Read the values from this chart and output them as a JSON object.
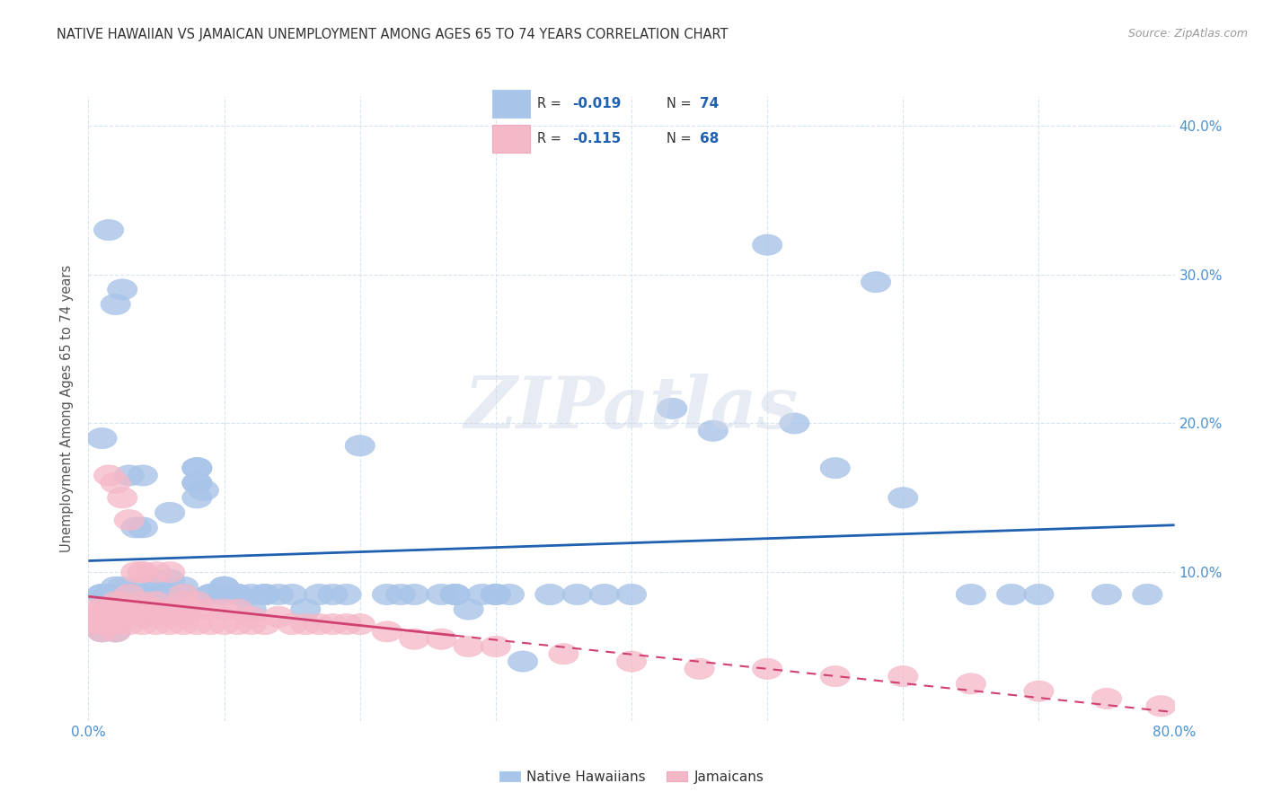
{
  "title": "NATIVE HAWAIIAN VS JAMAICAN UNEMPLOYMENT AMONG AGES 65 TO 74 YEARS CORRELATION CHART",
  "source": "Source: ZipAtlas.com",
  "ylabel": "Unemployment Among Ages 65 to 74 years",
  "xlim": [
    0.0,
    0.8
  ],
  "ylim": [
    0.0,
    0.42
  ],
  "xticks": [
    0.0,
    0.1,
    0.2,
    0.3,
    0.4,
    0.5,
    0.6,
    0.7,
    0.8
  ],
  "xticklabels": [
    "0.0%",
    "",
    "",
    "",
    "",
    "",
    "",
    "",
    "80.0%"
  ],
  "yticks": [
    0.0,
    0.1,
    0.2,
    0.3,
    0.4
  ],
  "yticklabels_right": [
    "",
    "10.0%",
    "20.0%",
    "30.0%",
    "40.0%"
  ],
  "blue_color": "#a8c4e8",
  "pink_color": "#f5b8c8",
  "blue_line_color": "#2060b0",
  "pink_line_color": "#d04070",
  "axis_tick_color": "#4a90d0",
  "grid_color": "#d8e4f0",
  "watermark_text": "ZIPatlas",
  "native_hawaiian_x": [
    0.01,
    0.01,
    0.01,
    0.015,
    0.02,
    0.02,
    0.02,
    0.02,
    0.025,
    0.025,
    0.03,
    0.03,
    0.03,
    0.03,
    0.04,
    0.04,
    0.04,
    0.04,
    0.05,
    0.05,
    0.05,
    0.06,
    0.06,
    0.07,
    0.07,
    0.08,
    0.08,
    0.08,
    0.09,
    0.09,
    0.1,
    0.1,
    0.1,
    0.11,
    0.11,
    0.12,
    0.12,
    0.13,
    0.13,
    0.14,
    0.15,
    0.16,
    0.17,
    0.18,
    0.19,
    0.2,
    0.22,
    0.23,
    0.24,
    0.26,
    0.27,
    0.27,
    0.28,
    0.29,
    0.3,
    0.3,
    0.31,
    0.32,
    0.34,
    0.36,
    0.38,
    0.4,
    0.43,
    0.46,
    0.5,
    0.52,
    0.55,
    0.58,
    0.6,
    0.65,
    0.68,
    0.7,
    0.75,
    0.78
  ],
  "native_hawaiian_y": [
    0.085,
    0.085,
    0.06,
    0.085,
    0.09,
    0.08,
    0.07,
    0.06,
    0.09,
    0.085,
    0.085,
    0.085,
    0.085,
    0.08,
    0.09,
    0.085,
    0.08,
    0.07,
    0.095,
    0.085,
    0.075,
    0.095,
    0.085,
    0.09,
    0.085,
    0.17,
    0.17,
    0.16,
    0.085,
    0.085,
    0.09,
    0.09,
    0.085,
    0.085,
    0.085,
    0.075,
    0.085,
    0.085,
    0.085,
    0.085,
    0.085,
    0.075,
    0.085,
    0.085,
    0.085,
    0.185,
    0.085,
    0.085,
    0.085,
    0.085,
    0.085,
    0.085,
    0.075,
    0.085,
    0.085,
    0.085,
    0.085,
    0.04,
    0.085,
    0.085,
    0.085,
    0.085,
    0.21,
    0.195,
    0.32,
    0.2,
    0.17,
    0.295,
    0.15,
    0.085,
    0.085,
    0.085,
    0.085,
    0.085
  ],
  "native_hawaiian_y_extra": [
    0.33,
    0.28,
    0.29,
    0.19,
    0.165,
    0.13,
    0.13,
    0.165,
    0.14,
    0.16,
    0.15,
    0.155
  ],
  "native_hawaiian_x_extra": [
    0.015,
    0.02,
    0.025,
    0.01,
    0.03,
    0.035,
    0.04,
    0.04,
    0.06,
    0.08,
    0.08,
    0.085
  ],
  "jamaican_x": [
    0.005,
    0.005,
    0.005,
    0.008,
    0.01,
    0.01,
    0.01,
    0.01,
    0.015,
    0.015,
    0.02,
    0.02,
    0.02,
    0.02,
    0.02,
    0.025,
    0.025,
    0.03,
    0.03,
    0.03,
    0.03,
    0.04,
    0.04,
    0.04,
    0.04,
    0.05,
    0.05,
    0.05,
    0.05,
    0.06,
    0.06,
    0.06,
    0.07,
    0.07,
    0.07,
    0.08,
    0.08,
    0.09,
    0.09,
    0.1,
    0.1,
    0.11,
    0.11,
    0.12,
    0.12,
    0.13,
    0.14,
    0.15,
    0.16,
    0.17,
    0.18,
    0.19,
    0.2,
    0.22,
    0.24,
    0.26,
    0.28,
    0.3,
    0.35,
    0.4,
    0.45,
    0.5,
    0.55,
    0.6,
    0.65,
    0.7,
    0.75,
    0.79
  ],
  "jamaican_y": [
    0.075,
    0.07,
    0.065,
    0.07,
    0.075,
    0.07,
    0.065,
    0.06,
    0.075,
    0.065,
    0.08,
    0.075,
    0.07,
    0.065,
    0.06,
    0.08,
    0.07,
    0.075,
    0.07,
    0.065,
    0.085,
    0.08,
    0.075,
    0.07,
    0.065,
    0.08,
    0.075,
    0.065,
    0.075,
    0.075,
    0.07,
    0.065,
    0.075,
    0.07,
    0.065,
    0.075,
    0.065,
    0.075,
    0.065,
    0.075,
    0.065,
    0.075,
    0.065,
    0.07,
    0.065,
    0.065,
    0.07,
    0.065,
    0.065,
    0.065,
    0.065,
    0.065,
    0.065,
    0.06,
    0.055,
    0.055,
    0.05,
    0.05,
    0.045,
    0.04,
    0.035,
    0.035,
    0.03,
    0.03,
    0.025,
    0.02,
    0.015,
    0.01
  ],
  "jamaican_y_extra": [
    0.165,
    0.16,
    0.15,
    0.135,
    0.1,
    0.1,
    0.1,
    0.1,
    0.1,
    0.08,
    0.085,
    0.08
  ],
  "jamaican_x_extra": [
    0.015,
    0.02,
    0.025,
    0.03,
    0.035,
    0.04,
    0.04,
    0.05,
    0.06,
    0.07,
    0.07,
    0.08
  ]
}
